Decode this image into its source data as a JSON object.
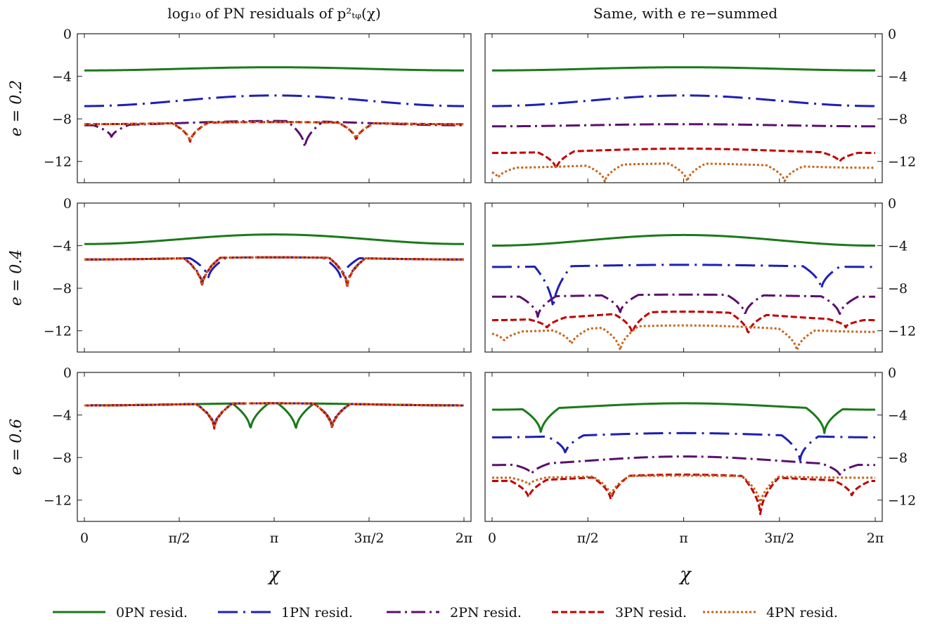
{
  "figure": {
    "left_title": "log₁₀ of PN residuals of p²ₜᵩ(χ)",
    "right_title": "Same, with e re−summed",
    "xlabel": "χ",
    "row_labels": [
      "e = 0.2",
      "e = 0.4",
      "e = 0.6"
    ],
    "x_tick_labels": [
      "0",
      "π/2",
      "π",
      "3π/2",
      "2π"
    ],
    "y_tick_labels": [
      "0",
      "−4",
      "−8",
      "−12"
    ]
  },
  "legend": [
    {
      "label": "0PN resid.",
      "color": "#1a7a1a",
      "dash": "solid"
    },
    {
      "label": "1PN resid.",
      "color": "#1f1fb4",
      "dash": "dashdot-long"
    },
    {
      "label": "2PN resid.",
      "color": "#5b0f6e",
      "dash": "dashdot"
    },
    {
      "label": "3PN resid.",
      "color": "#c00000",
      "dash": "dashed"
    },
    {
      "label": "4PN resid.",
      "color": "#c8641a",
      "dash": "dotted"
    }
  ],
  "chart_data": {
    "type": "line",
    "x_domain": [
      0,
      6.2832
    ],
    "ylim": [
      -14,
      0
    ],
    "y_ticks": [
      0,
      -4,
      -8,
      -12
    ],
    "x_ticks": [
      0,
      1.5708,
      3.1416,
      4.7124,
      6.2832
    ],
    "panels": [
      {
        "row": "e = 0.2",
        "side": "left",
        "series": [
          {
            "name": "0PN resid.",
            "mean": -3.3,
            "amp": 0.15,
            "dips": []
          },
          {
            "name": "1PN resid.",
            "mean": -6.3,
            "amp": 0.5,
            "dips": []
          },
          {
            "name": "2PN resid.",
            "mean": -8.4,
            "amp": 0.2,
            "dips": [
              [
                0.45,
                -9.8
              ],
              [
                3.65,
                -10.8
              ]
            ]
          },
          {
            "name": "3PN resid.",
            "mean": -8.4,
            "amp": 0.1,
            "dips": [
              [
                1.75,
                -10.3
              ],
              [
                4.5,
                -10.1
              ]
            ]
          },
          {
            "name": "4PN resid.",
            "mean": -8.4,
            "amp": 0.1,
            "dips": [
              [
                1.75,
                -10.2
              ],
              [
                4.5,
                -10.0
              ]
            ]
          }
        ]
      },
      {
        "row": "e = 0.2",
        "side": "right",
        "series": [
          {
            "name": "0PN resid.",
            "mean": -3.3,
            "amp": 0.15,
            "dips": []
          },
          {
            "name": "1PN resid.",
            "mean": -6.3,
            "amp": 0.5,
            "dips": []
          },
          {
            "name": "2PN resid.",
            "mean": -8.6,
            "amp": 0.1,
            "dips": []
          },
          {
            "name": "3PN resid.",
            "mean": -11.0,
            "amp": 0.2,
            "dips": [
              [
                1.05,
                -12.8
              ],
              [
                5.7,
                -12.1
              ]
            ]
          },
          {
            "name": "4PN resid.",
            "mean": -12.4,
            "amp": 0.2,
            "dips": [
              [
                0.1,
                -13.6
              ],
              [
                1.85,
                -14.0
              ],
              [
                3.2,
                -14.0
              ],
              [
                4.8,
                -14.0
              ]
            ]
          }
        ]
      },
      {
        "row": "e = 0.4",
        "side": "left",
        "series": [
          {
            "name": "0PN resid.",
            "mean": -3.4,
            "amp": 0.45,
            "dips": []
          },
          {
            "name": "1PN resid.",
            "mean": -5.2,
            "amp": 0.1,
            "dips": [
              [
                2.05,
                -7.2
              ],
              [
                4.25,
                -7.3
              ]
            ]
          },
          {
            "name": "2PN resid.",
            "mean": -5.2,
            "amp": 0.1,
            "dips": [
              [
                1.95,
                -7.8
              ],
              [
                4.35,
                -7.8
              ]
            ]
          },
          {
            "name": "3PN resid.",
            "mean": -5.2,
            "amp": 0.1,
            "dips": [
              [
                1.95,
                -8.0
              ],
              [
                4.35,
                -8.0
              ]
            ]
          },
          {
            "name": "4PN resid.",
            "mean": -5.2,
            "amp": 0.1,
            "dips": [
              [
                1.95,
                -7.9
              ],
              [
                4.35,
                -7.9
              ]
            ]
          }
        ]
      },
      {
        "row": "e = 0.4",
        "side": "right",
        "series": [
          {
            "name": "0PN resid.",
            "mean": -3.5,
            "amp": 0.5,
            "dips": []
          },
          {
            "name": "1PN resid.",
            "mean": -5.9,
            "amp": 0.1,
            "dips": [
              [
                1.0,
                -10.2
              ],
              [
                5.4,
                -8.2
              ]
            ]
          },
          {
            "name": "2PN resid.",
            "mean": -8.7,
            "amp": 0.1,
            "dips": [
              [
                0.75,
                -10.8
              ],
              [
                2.1,
                -10.4
              ],
              [
                4.15,
                -10.6
              ],
              [
                5.7,
                -10.6
              ]
            ]
          },
          {
            "name": "3PN resid.",
            "mean": -10.6,
            "amp": 0.4,
            "dips": [
              [
                0.9,
                -11.8
              ],
              [
                2.3,
                -12.4
              ],
              [
                4.2,
                -12.4
              ],
              [
                5.8,
                -11.7
              ]
            ]
          },
          {
            "name": "4PN resid.",
            "mean": -11.8,
            "amp": 0.3,
            "dips": [
              [
                0.2,
                -13.0
              ],
              [
                1.3,
                -13.4
              ],
              [
                2.1,
                -14.0
              ],
              [
                5.0,
                -14.0
              ]
            ]
          }
        ]
      },
      {
        "row": "e = 0.6",
        "side": "left",
        "series": [
          {
            "name": "0PN resid.",
            "mean": -3.0,
            "amp": 0.1,
            "dips": [
              [
                2.75,
                -5.5
              ],
              [
                3.5,
                -5.5
              ]
            ]
          },
          {
            "name": "1PN resid.",
            "mean": -3.0,
            "amp": 0.1,
            "dips": [
              [
                2.15,
                -5.2
              ],
              [
                4.1,
                -5.2
              ]
            ]
          },
          {
            "name": "2PN resid.",
            "mean": -3.0,
            "amp": 0.1,
            "dips": [
              [
                2.15,
                -5.3
              ],
              [
                4.1,
                -5.3
              ]
            ]
          },
          {
            "name": "3PN resid.",
            "mean": -3.0,
            "amp": 0.1,
            "dips": [
              [
                2.15,
                -5.4
              ],
              [
                4.1,
                -5.4
              ]
            ]
          },
          {
            "name": "4PN resid.",
            "mean": -3.0,
            "amp": 0.1,
            "dips": [
              [
                2.15,
                -5.3
              ],
              [
                4.1,
                -5.3
              ]
            ]
          }
        ]
      },
      {
        "row": "e = 0.6",
        "side": "right",
        "series": [
          {
            "name": "0PN resid.",
            "mean": -3.2,
            "amp": 0.3,
            "dips": [
              [
                0.8,
                -5.8
              ],
              [
                5.45,
                -5.8
              ]
            ]
          },
          {
            "name": "1PN resid.",
            "mean": -5.9,
            "amp": 0.2,
            "dips": [
              [
                1.2,
                -7.7
              ],
              [
                5.05,
                -8.4
              ]
            ]
          },
          {
            "name": "2PN resid.",
            "mean": -8.3,
            "amp": 0.4,
            "dips": [
              [
                0.65,
                -9.6
              ],
              [
                5.7,
                -9.7
              ]
            ]
          },
          {
            "name": "3PN resid.",
            "mean": -9.9,
            "amp": 0.3,
            "dips": [
              [
                0.6,
                -11.9
              ],
              [
                1.95,
                -12.2
              ],
              [
                4.4,
                -13.6
              ],
              [
                5.9,
                -11.7
              ]
            ]
          },
          {
            "name": "4PN resid.",
            "mean": -9.8,
            "amp": 0.1,
            "dips": [
              [
                0.6,
                -10.6
              ],
              [
                1.95,
                -11.8
              ],
              [
                4.4,
                -12.6
              ]
            ]
          }
        ]
      }
    ]
  }
}
